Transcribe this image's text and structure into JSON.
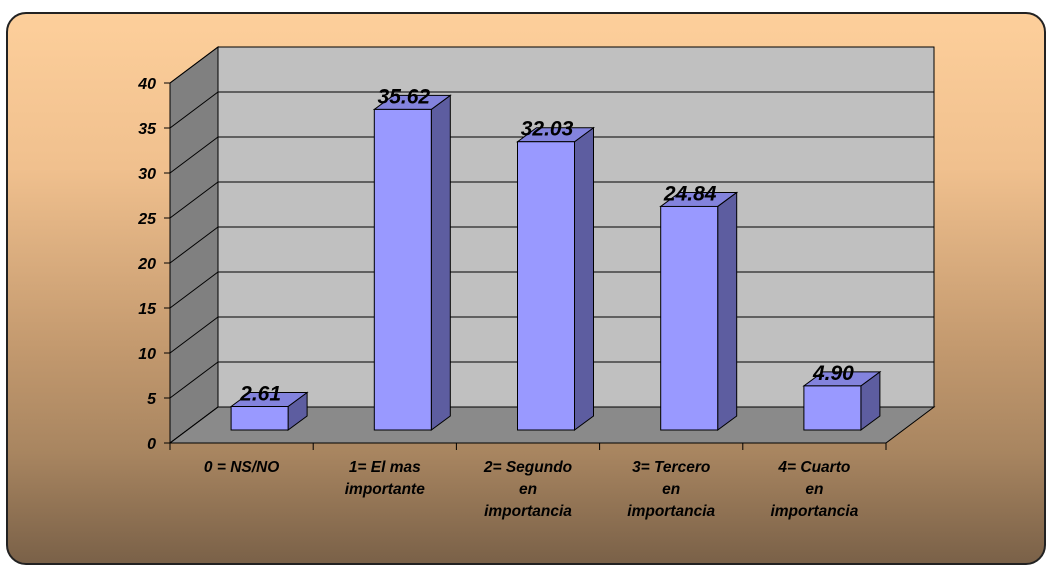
{
  "chart_data": {
    "type": "bar",
    "categories": [
      [
        "0 = NS/NO"
      ],
      [
        "1= El mas",
        "importante"
      ],
      [
        "2= Segundo",
        "en",
        "importancia"
      ],
      [
        "3= Tercero",
        "en",
        "importancia"
      ],
      [
        "4= Cuarto",
        "en",
        "importancia"
      ]
    ],
    "values": [
      2.61,
      35.62,
      32.03,
      24.84,
      4.9
    ],
    "data_labels": [
      "2.61",
      "35.62",
      "32.03",
      "24.84",
      "4.90"
    ],
    "ylim": [
      0,
      40
    ],
    "yticks": [
      "0",
      "5",
      "10",
      "15",
      "20",
      "25",
      "30",
      "35",
      "40"
    ],
    "grid": true,
    "three_d": true,
    "legend": "none",
    "colors": {
      "bar_front": "#9999ff",
      "bar_top": "#8383dd",
      "bar_side": "#5d5da0",
      "wall_back": "#c0c0c0",
      "wall_side": "#808080",
      "floor": "#8a8a8a",
      "gridline": "#000000"
    }
  }
}
